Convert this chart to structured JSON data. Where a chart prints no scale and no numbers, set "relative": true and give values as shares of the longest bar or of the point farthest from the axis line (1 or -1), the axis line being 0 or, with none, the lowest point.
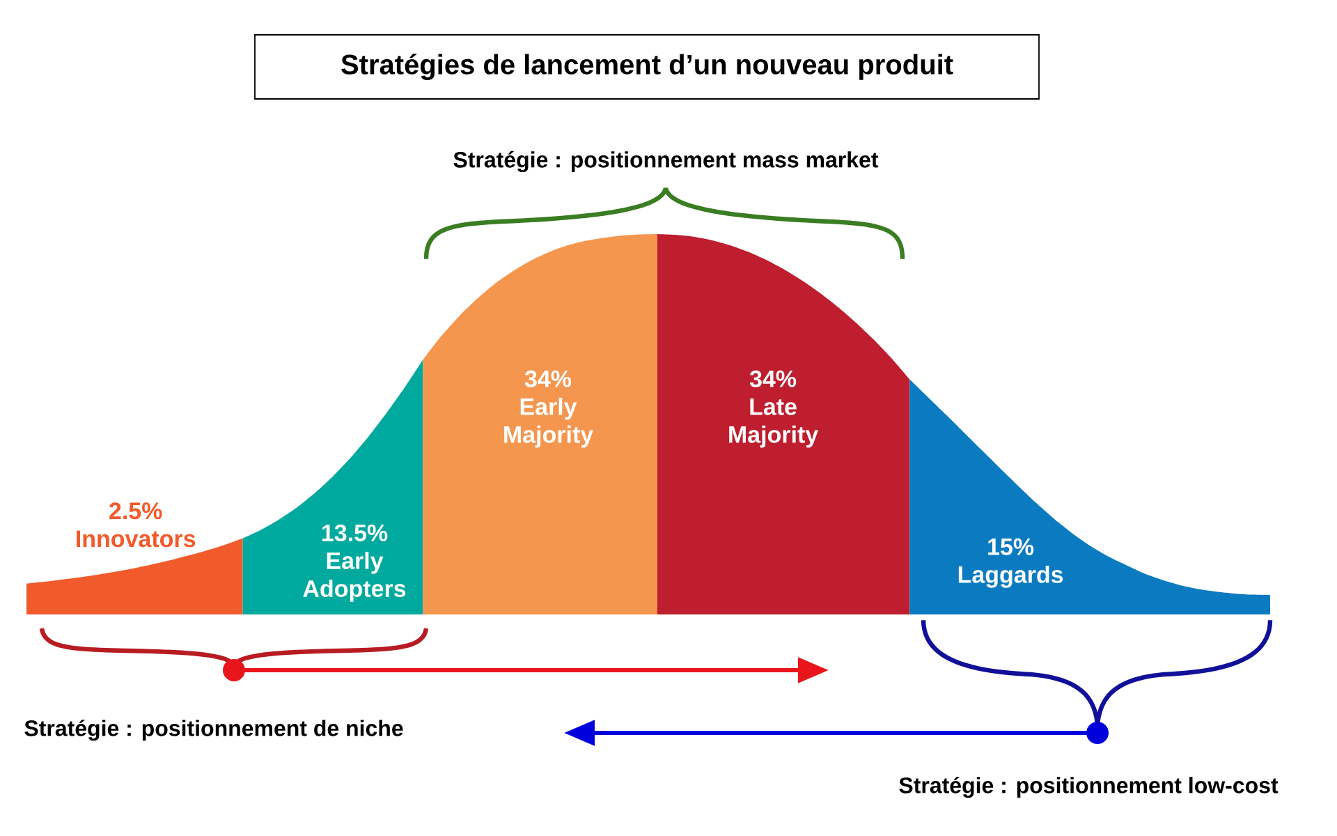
{
  "chart_data": {
    "type": "area",
    "title": "Stratégies de lancement d’un nouveau produit",
    "relative": true,
    "categories": [
      null,
      null,
      null,
      null,
      null,
      null,
      null,
      null,
      null,
      null,
      null,
      null,
      null,
      null,
      null,
      null,
      null,
      null,
      null,
      null,
      null,
      null,
      null,
      null,
      null,
      null,
      null,
      null,
      null,
      null,
      null,
      null,
      null,
      null,
      null,
      null,
      null,
      null,
      null,
      null,
      null,
      null,
      null,
      null,
      null,
      null,
      null,
      null,
      null,
      null,
      null,
      null,
      null,
      null,
      null,
      null,
      null,
      null,
      null,
      null,
      null,
      null,
      null,
      null,
      null,
      null,
      null,
      null,
      null,
      null
    ],
    "series": [
      {
        "name": "2.5% Innovators",
        "color": "#f15a2b",
        "values": [
          0.081,
          0.086,
          0.092,
          0.098,
          0.105,
          0.113,
          0.122,
          0.132,
          0.143,
          0.155,
          0.168,
          0.183,
          0.2,
          null,
          null,
          null,
          null,
          null,
          null,
          null,
          null,
          null,
          null,
          null,
          null,
          null,
          null,
          null,
          null,
          null,
          null,
          null,
          null,
          null,
          null,
          null,
          null,
          null,
          null,
          null,
          null,
          null,
          null,
          null,
          null,
          null,
          null,
          null,
          null,
          null,
          null,
          null,
          null,
          null,
          null,
          null,
          null,
          null,
          null,
          null,
          null,
          null,
          null,
          null,
          null,
          null,
          null,
          null,
          null,
          null
        ]
      },
      {
        "name": "13.5% Early Adopters",
        "color": "#00a99e",
        "values": [
          null,
          null,
          null,
          null,
          null,
          null,
          null,
          null,
          null,
          null,
          null,
          null,
          0.2,
          0.222,
          0.249,
          0.281,
          0.319,
          0.363,
          0.413,
          0.469,
          0.531,
          0.598,
          0.67,
          null,
          null,
          null,
          null,
          null,
          null,
          null,
          null,
          null,
          null,
          null,
          null,
          null,
          null,
          null,
          null,
          null,
          null,
          null,
          null,
          null,
          null,
          null,
          null,
          null,
          null,
          null,
          null,
          null,
          null,
          null,
          null,
          null,
          null,
          null,
          null,
          null,
          null,
          null,
          null,
          null,
          null,
          null,
          null,
          null,
          null,
          null
        ]
      },
      {
        "name": "34% Early Majority",
        "color": "#f5964e",
        "values": [
          null,
          null,
          null,
          null,
          null,
          null,
          null,
          null,
          null,
          null,
          null,
          null,
          null,
          null,
          null,
          null,
          null,
          null,
          null,
          null,
          null,
          null,
          0.67,
          0.731,
          0.784,
          0.83,
          0.87,
          0.903,
          0.931,
          0.953,
          0.97,
          0.982,
          0.99,
          0.996,
          0.999,
          1,
          null,
          null,
          null,
          null,
          null,
          null,
          null,
          null,
          null,
          null,
          null,
          null,
          null,
          null,
          null,
          null,
          null,
          null,
          null,
          null,
          null,
          null,
          null,
          null,
          null,
          null,
          null,
          null,
          null,
          null,
          null,
          null,
          null,
          null
        ]
      },
      {
        "name": "34% Late Majority",
        "color": "#be1e2e",
        "values": [
          null,
          null,
          null,
          null,
          null,
          null,
          null,
          null,
          null,
          null,
          null,
          null,
          null,
          null,
          null,
          null,
          null,
          null,
          null,
          null,
          null,
          null,
          null,
          null,
          null,
          null,
          null,
          null,
          null,
          null,
          null,
          null,
          null,
          null,
          null,
          1,
          0.998,
          0.993,
          0.984,
          0.971,
          0.954,
          0.933,
          0.908,
          0.879,
          0.846,
          0.809,
          0.768,
          0.723,
          0.673,
          0.618,
          null,
          null,
          null,
          null,
          null,
          null,
          null,
          null,
          null,
          null,
          null,
          null,
          null,
          null,
          null,
          null,
          null,
          null,
          null,
          null
        ]
      },
      {
        "name": "15% Laggards",
        "color": "#0b7bc1",
        "values": [
          null,
          null,
          null,
          null,
          null,
          null,
          null,
          null,
          null,
          null,
          null,
          null,
          null,
          null,
          null,
          null,
          null,
          null,
          null,
          null,
          null,
          null,
          null,
          null,
          null,
          null,
          null,
          null,
          null,
          null,
          null,
          null,
          null,
          null,
          null,
          null,
          null,
          null,
          null,
          null,
          null,
          null,
          null,
          null,
          null,
          null,
          null,
          null,
          null,
          0.618,
          0.572,
          0.526,
          0.479,
          0.432,
          0.385,
          0.339,
          0.294,
          0.252,
          0.214,
          0.181,
          0.153,
          0.13,
          0.108,
          0.091,
          0.077,
          0.067,
          0.06,
          0.055,
          0.052,
          0.051
        ]
      }
    ],
    "annotations": [
      "Stratégie : positionnement mass market",
      "Stratégie : positionnement de niche",
      "Stratégie : positionnement low-cost"
    ]
  }
}
